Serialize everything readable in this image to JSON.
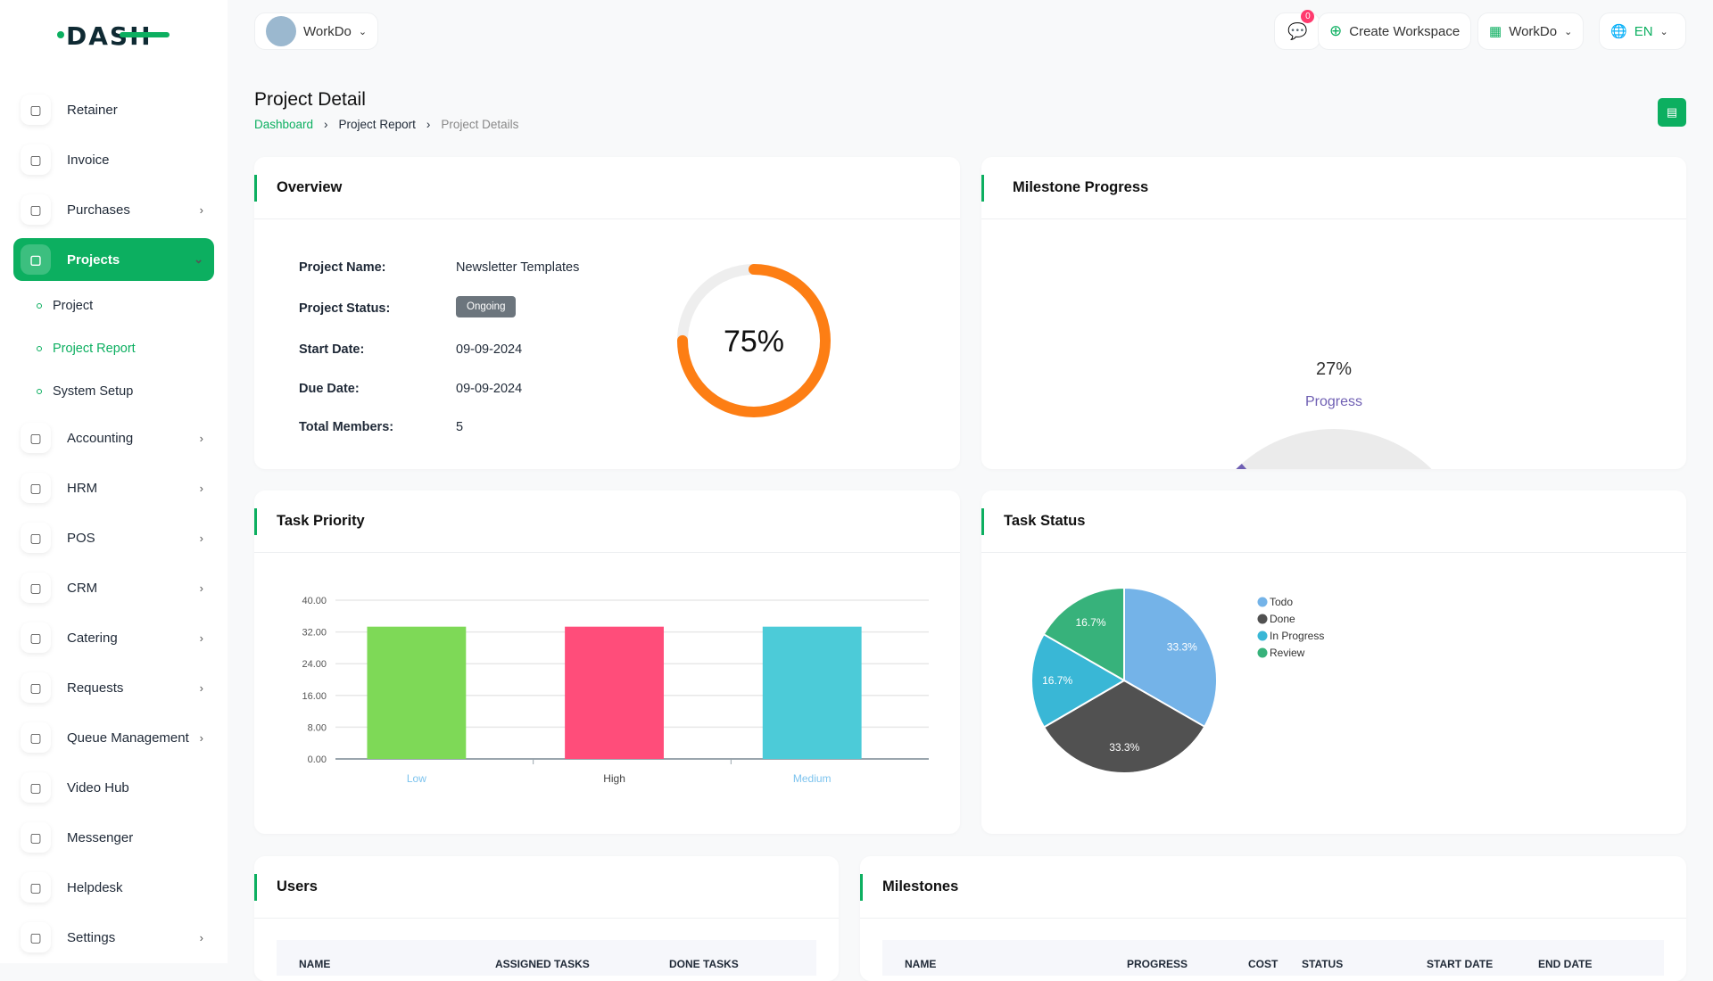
{
  "brand": {
    "logo_text": "DASH",
    "accent": "#0caf60"
  },
  "header": {
    "workspace": "WorkDo",
    "notif_count": "0",
    "create_workspace": "Create Workspace",
    "company": "WorkDo",
    "language": "EN"
  },
  "sidebar": {
    "items": [
      {
        "label": "Retainer",
        "icon": "retainer-icon"
      },
      {
        "label": "Invoice",
        "icon": "invoice-icon"
      },
      {
        "label": "Purchases",
        "icon": "cart-icon",
        "chev": true
      },
      {
        "label": "Projects",
        "icon": "projects-icon",
        "active": true
      },
      {
        "label": "Accounting",
        "icon": "accounting-icon",
        "chev": true
      },
      {
        "label": "HRM",
        "icon": "hrm-icon",
        "chev": true
      },
      {
        "label": "POS",
        "icon": "pos-icon",
        "chev": true
      },
      {
        "label": "CRM",
        "icon": "crm-icon",
        "chev": true
      },
      {
        "label": "Catering",
        "icon": "catering-icon",
        "chev": true
      },
      {
        "label": "Requests",
        "icon": "requests-icon",
        "chev": true
      },
      {
        "label": "Queue Management",
        "icon": "queue-icon",
        "chev": true
      },
      {
        "label": "Video Hub",
        "icon": "video-icon"
      },
      {
        "label": "Messenger",
        "icon": "messenger-icon"
      },
      {
        "label": "Helpdesk",
        "icon": "helpdesk-icon"
      },
      {
        "label": "Settings",
        "icon": "settings-icon",
        "chev": true
      }
    ],
    "sub_items": [
      "Project",
      "Project Report",
      "System Setup"
    ]
  },
  "page": {
    "title": "Project Detail",
    "breadcrumb": [
      "Dashboard",
      "Project Report",
      "Project Details"
    ]
  },
  "overview": {
    "title": "Overview",
    "fields": [
      {
        "label": "Project Name:",
        "value": "Newsletter Templates"
      },
      {
        "label": "Project Status:",
        "value": "Ongoing"
      },
      {
        "label": "Start Date:",
        "value": "09-09-2024"
      },
      {
        "label": "Due Date:",
        "value": "09-09-2024"
      },
      {
        "label": "Total Members:",
        "value": "5"
      }
    ],
    "progress": 75,
    "progress_label": "75%",
    "progress_color": "#fd7e14"
  },
  "milestone": {
    "title": "Milestone Progress",
    "value": 27,
    "value_label": "27%",
    "label": "Progress",
    "color": "#6f5fb3"
  },
  "chart_data": [
    {
      "type": "bar",
      "title": "Task Priority",
      "categories": [
        "Low",
        "High",
        "Medium"
      ],
      "values": [
        33.33,
        33.33,
        33.33
      ],
      "colors": [
        "#7ed957",
        "#ff4d7a",
        "#4ccbd8"
      ],
      "yticks": [
        "0.00",
        "8.00",
        "16.00",
        "24.00",
        "32.00",
        "40.00"
      ],
      "ylim": [
        0,
        40
      ],
      "grid": true
    },
    {
      "type": "pie",
      "title": "Task Status",
      "categories": [
        "Todo",
        "Done",
        "In Progress",
        "Review"
      ],
      "values": [
        33.3,
        33.3,
        16.7,
        16.7
      ],
      "labels": [
        "33.3%",
        "33.3%",
        "16.7%",
        "16.7%"
      ],
      "colors": [
        "#74b3e8",
        "#515151",
        "#39b7d6",
        "#37b27b"
      ],
      "legend": "right"
    }
  ],
  "users": {
    "title": "Users",
    "columns": [
      "NAME",
      "ASSIGNED TASKS",
      "DONE TASKS"
    ]
  },
  "milestones": {
    "title": "Milestones",
    "columns": [
      "NAME",
      "PROGRESS",
      "COST",
      "STATUS",
      "START DATE",
      "END DATE"
    ]
  }
}
